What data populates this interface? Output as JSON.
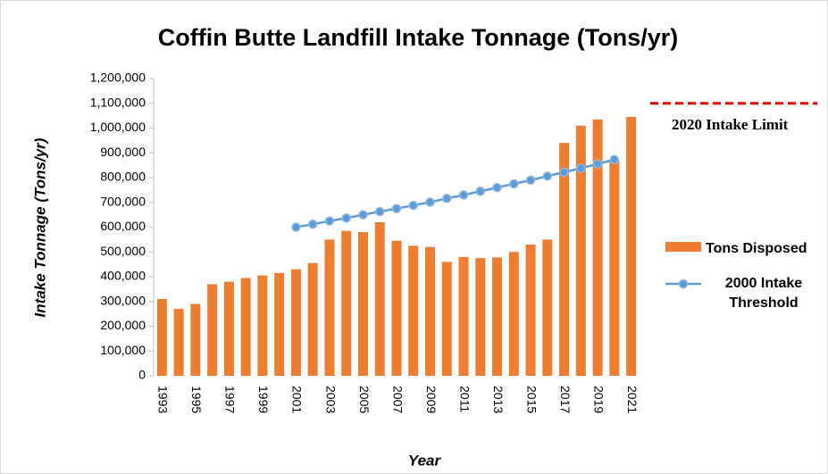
{
  "chart_data": {
    "type": "bar",
    "title": "Coffin Butte Landfill Intake Tonnage (Tons/yr)",
    "x_label": "Year",
    "y_label": "Intake Tonnage (Tons/yr)",
    "categories": [
      "1993",
      null,
      "1995",
      null,
      "1997",
      null,
      "1999",
      null,
      "2001",
      null,
      "2003",
      null,
      "2005",
      null,
      "2007",
      null,
      "2009",
      null,
      "2011",
      null,
      "2013",
      null,
      "2015",
      null,
      "2017",
      null,
      "2019",
      null,
      "2021"
    ],
    "series": [
      {
        "name": "Tons Disposed",
        "type": "bar",
        "color": "#ed7d31",
        "values": [
          310000,
          270000,
          290000,
          370000,
          380000,
          395000,
          405000,
          415000,
          430000,
          455000,
          550000,
          585000,
          580000,
          620000,
          545000,
          525000,
          520000,
          460000,
          480000,
          475000,
          478000,
          500000,
          530000,
          550000,
          940000,
          1010000,
          1035000,
          870000,
          1045000
        ]
      },
      {
        "name": "2000 Intake Threshold",
        "type": "line",
        "color": "#5b9bd5",
        "values": [
          null,
          null,
          null,
          null,
          null,
          null,
          null,
          null,
          600000,
          612000,
          625000,
          637000,
          650000,
          663000,
          675000,
          688000,
          701000,
          716000,
          730000,
          745000,
          760000,
          775000,
          790000,
          806000,
          822000,
          838000,
          855000,
          873000,
          null
        ]
      }
    ],
    "reference_line": {
      "value": 1100000,
      "label": "2020 Intake Limit",
      "color": "#e00000"
    },
    "ylim": [
      0,
      1200000
    ],
    "yticks": [
      0,
      {
        "value": 100000,
        "label": "100,000"
      },
      {
        "value": 200000,
        "label": "200,000"
      },
      {
        "value": 300000,
        "label": "300,000"
      },
      {
        "value": 400000,
        "label": "400,000"
      },
      {
        "value": 500000,
        "label": "500,000"
      },
      {
        "value": 600000,
        "label": "600,000"
      },
      {
        "value": 700000,
        "label": "700,000"
      },
      {
        "value": 800000,
        "label": "800,000"
      },
      {
        "value": 900000,
        "label": "900,000"
      },
      {
        "value": 1000000,
        "label": "1,000,000"
      },
      {
        "value": 1100000,
        "label": "1,100,000"
      },
      {
        "value": 1200000,
        "label": "1,200,000"
      }
    ],
    "grid": false
  }
}
